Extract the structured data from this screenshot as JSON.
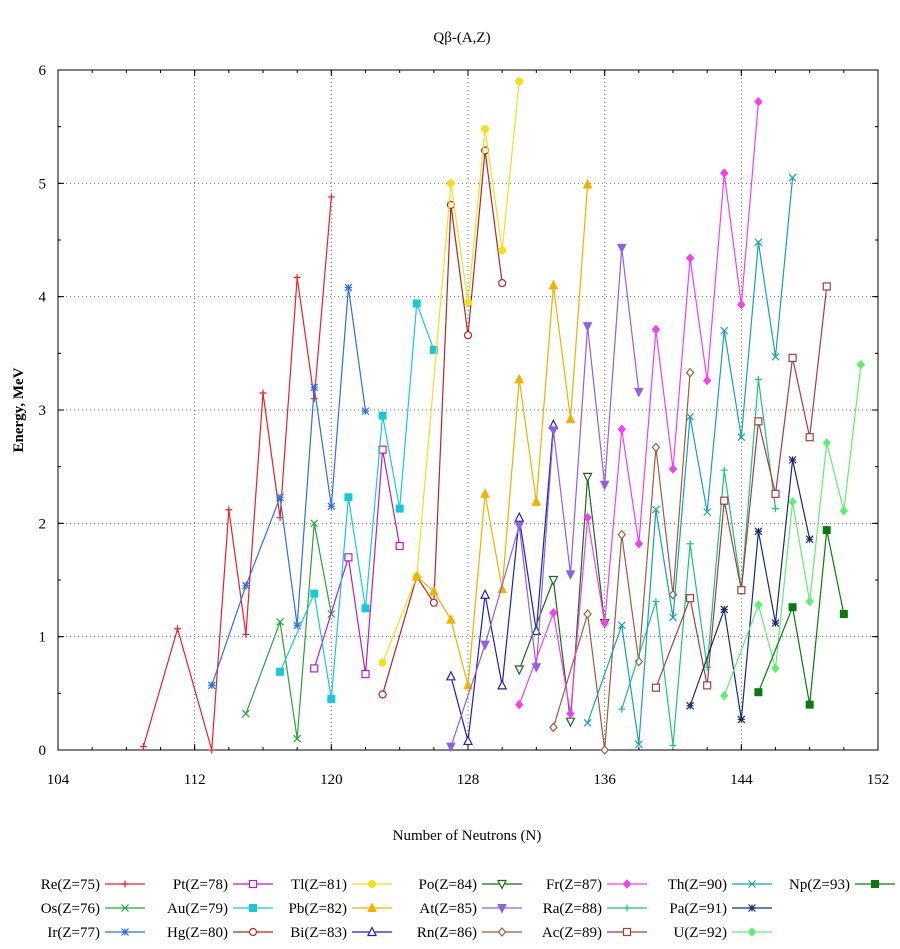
{
  "chart_data": {
    "type": "line",
    "title": "Qβ-(A,Z)",
    "xlabel": "Number of Neutrons (N)",
    "ylabel": "Energy, MeV",
    "xlim": [
      104,
      152
    ],
    "ylim": [
      0,
      6
    ],
    "x_ticks": [
      "104",
      "112",
      "120",
      "128",
      "136",
      "144",
      "152"
    ],
    "y_ticks": [
      "0",
      "1",
      "2",
      "3",
      "4",
      "5",
      "6"
    ],
    "grid": true,
    "legend_position": "bottom",
    "series": [
      {
        "name": "Re(Z=75)",
        "color": "#e8202a",
        "marker": "plus",
        "x": [
          109,
          111,
          113,
          114,
          115,
          116,
          117,
          118,
          119,
          120
        ],
        "y": [
          0.03,
          1.07,
          0.0,
          2.12,
          1.02,
          3.15,
          2.05,
          4.17,
          3.1,
          4.88
        ]
      },
      {
        "name": "Os(Z=76)",
        "color": "#2ea03a",
        "marker": "x",
        "x": [
          115,
          117,
          118,
          119,
          120
        ],
        "y": [
          0.32,
          1.13,
          0.1,
          2.0,
          1.2
        ]
      },
      {
        "name": "Ir(Z=77)",
        "color": "#2f6fe0",
        "marker": "star",
        "x": [
          113,
          115,
          117,
          118,
          119,
          120,
          121,
          122
        ],
        "y": [
          0.57,
          1.45,
          2.23,
          1.1,
          3.2,
          2.15,
          4.08,
          2.99
        ]
      },
      {
        "name": "Pt(Z=78)",
        "color": "#b020c8",
        "marker": "square-open",
        "x": [
          119,
          121,
          122,
          123,
          124
        ],
        "y": [
          0.72,
          1.7,
          0.67,
          2.65,
          1.8
        ]
      },
      {
        "name": "Au(Z=79)",
        "color": "#18c8d8",
        "marker": "square-filled",
        "x": [
          117,
          119,
          120,
          121,
          122,
          123,
          124,
          125,
          126
        ],
        "y": [
          0.69,
          1.38,
          0.45,
          2.23,
          1.25,
          2.95,
          2.13,
          3.94,
          3.53
        ]
      },
      {
        "name": "Hg(Z=80)",
        "color": "#b02828",
        "marker": "circle-open",
        "x": [
          123,
          125,
          126,
          127,
          128,
          129,
          130
        ],
        "y": [
          0.49,
          1.53,
          1.3,
          4.81,
          3.66,
          5.29,
          4.12
        ]
      },
      {
        "name": "Tl(Z=81)",
        "color": "#f0e020",
        "marker": "circle-filled",
        "x": [
          123,
          125,
          127,
          128,
          129,
          130,
          131
        ],
        "y": [
          0.77,
          1.53,
          5.0,
          3.95,
          5.48,
          4.41,
          5.9
        ]
      },
      {
        "name": "Pb(Z=82)",
        "color": "#f0b000",
        "marker": "triangle-filled",
        "x": [
          125,
          126,
          127,
          128,
          129,
          130,
          131,
          132,
          133,
          134,
          135
        ],
        "y": [
          1.53,
          1.4,
          1.15,
          0.57,
          2.26,
          1.42,
          3.27,
          2.19,
          4.1,
          2.92,
          4.99
        ]
      },
      {
        "name": "Bi(Z=83)",
        "color": "#2020b0",
        "marker": "triangle-open",
        "x": [
          127,
          128,
          129,
          130,
          131,
          132,
          133
        ],
        "y": [
          0.65,
          0.08,
          1.37,
          0.57,
          2.05,
          1.05,
          2.87
        ]
      },
      {
        "name": "Po(Z=84)",
        "color": "#1a6a1a",
        "marker": "tri-down-open",
        "x": [
          131,
          133,
          134,
          135,
          136
        ],
        "y": [
          0.71,
          1.5,
          0.25,
          2.41,
          1.12
        ]
      },
      {
        "name": "At(Z=85)",
        "color": "#9060e0",
        "marker": "tri-down-filled",
        "x": [
          127,
          129,
          131,
          132,
          133,
          134,
          135,
          136,
          137,
          138
        ],
        "y": [
          0.03,
          0.93,
          1.98,
          0.73,
          2.82,
          1.55,
          3.74,
          2.34,
          4.43,
          3.16
        ]
      },
      {
        "name": "Rn(Z=86)",
        "color": "#a05a40",
        "marker": "diamond-open",
        "x": [
          133,
          135,
          136,
          137,
          138,
          139,
          140,
          141
        ],
        "y": [
          0.2,
          1.2,
          0.0,
          1.9,
          0.78,
          2.67,
          1.37,
          3.33
        ]
      },
      {
        "name": "Fr(Z=87)",
        "color": "#f040f0",
        "marker": "diamond-filled",
        "x": [
          131,
          133,
          134,
          135,
          136,
          137,
          138,
          139,
          140,
          141,
          142,
          143,
          144,
          145
        ],
        "y": [
          0.4,
          1.21,
          0.32,
          2.05,
          1.12,
          2.83,
          1.82,
          3.71,
          2.48,
          4.34,
          3.26,
          5.09,
          3.93,
          5.72
        ]
      },
      {
        "name": "Ra(Z=88)",
        "color": "#20c080",
        "marker": "plus",
        "x": [
          137,
          139,
          140,
          141,
          142,
          143,
          144,
          145,
          146
        ],
        "y": [
          0.36,
          1.31,
          0.04,
          1.82,
          0.73,
          2.47,
          1.42,
          3.27,
          2.13
        ]
      },
      {
        "name": "Ac(Z=89)",
        "color": "#a04040",
        "marker": "square-open",
        "x": [
          139,
          141,
          142,
          143,
          144,
          145,
          146,
          147,
          148,
          149
        ],
        "y": [
          0.55,
          1.34,
          0.57,
          2.2,
          1.41,
          2.9,
          2.26,
          3.46,
          2.76,
          4.09
        ]
      },
      {
        "name": "Th(Z=90)",
        "color": "#18a0b0",
        "marker": "x",
        "x": [
          135,
          137,
          138,
          139,
          140,
          141,
          142,
          143,
          144,
          145,
          146,
          147
        ],
        "y": [
          0.24,
          1.1,
          0.05,
          2.12,
          1.17,
          2.94,
          2.1,
          3.7,
          2.76,
          4.48,
          3.47,
          5.05
        ]
      },
      {
        "name": "Pa(Z=91)",
        "color": "#1a2a70",
        "marker": "star",
        "x": [
          141,
          143,
          144,
          145,
          146,
          147,
          148
        ],
        "y": [
          0.39,
          1.24,
          0.27,
          1.93,
          1.12,
          2.56,
          1.86
        ]
      },
      {
        "name": "U(Z=92)",
        "color": "#60ee70",
        "marker": "diamond-filled",
        "x": [
          143,
          145,
          146,
          147,
          148,
          149,
          150,
          151
        ],
        "y": [
          0.48,
          1.28,
          0.72,
          2.19,
          1.31,
          2.71,
          2.11,
          3.4
        ]
      },
      {
        "name": "Np(Z=93)",
        "color": "#0a7a10",
        "marker": "square-filled",
        "x": [
          145,
          147,
          148,
          149,
          150
        ],
        "y": [
          0.51,
          1.26,
          0.4,
          1.94,
          1.2
        ]
      }
    ]
  }
}
